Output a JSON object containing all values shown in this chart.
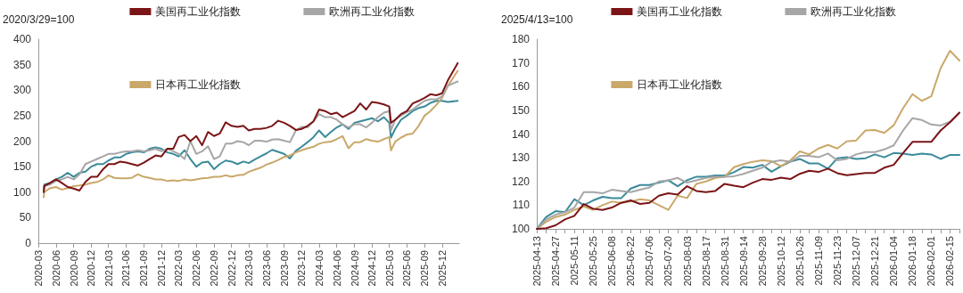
{
  "chart_data": [
    {
      "type": "line",
      "ylabel": "2020/3/29=100",
      "legend": "top",
      "marker": "none",
      "line_style": "solid",
      "grid": false,
      "x": [
        "2020-03-29",
        "2020-04-01",
        "2020-05-01",
        "2020-06-01",
        "2020-07-01",
        "2020-08-01",
        "2020-09-01",
        "2020-10-01",
        "2020-11-01",
        "2020-12-01",
        "2021-01-01",
        "2021-02-01",
        "2021-03-01",
        "2021-04-01",
        "2021-05-01",
        "2021-06-01",
        "2021-07-01",
        "2021-08-01",
        "2021-09-01",
        "2021-10-01",
        "2021-11-01",
        "2021-12-01",
        "2022-01-01",
        "2022-02-01",
        "2022-03-01",
        "2022-04-01",
        "2022-05-01",
        "2022-06-01",
        "2022-07-01",
        "2022-08-01",
        "2022-09-01",
        "2022-10-01",
        "2022-11-01",
        "2022-12-01",
        "2023-01-01",
        "2023-02-01",
        "2023-03-01",
        "2023-04-01",
        "2023-05-01",
        "2023-06-01",
        "2023-07-01",
        "2023-08-01",
        "2023-09-01",
        "2023-10-01",
        "2023-11-01",
        "2023-12-01",
        "2024-01-01",
        "2024-02-01",
        "2024-03-01",
        "2024-04-01",
        "2024-05-01",
        "2024-06-01",
        "2024-07-01",
        "2024-08-01",
        "2024-09-01",
        "2024-10-01",
        "2024-11-01",
        "2024-12-01",
        "2025-01-01",
        "2025-02-01",
        "2025-03-01",
        "2025-03-10",
        "2025-04-01",
        "2025-05-01",
        "2025-06-01",
        "2025-07-01",
        "2025-08-01",
        "2025-09-01",
        "2025-10-01",
        "2025-11-01",
        "2025-12-01",
        "2026-01-01",
        "2026-02-20"
      ],
      "xlim": [
        "2020-03-01",
        "2026-02-28"
      ],
      "xticks": [
        "2020-03",
        "2020-06",
        "2020-09",
        "2020-12",
        "2021-03",
        "2021-06",
        "2021-09",
        "2021-12",
        "2022-03",
        "2022-06",
        "2022-09",
        "2022-12",
        "2023-03",
        "2023-06",
        "2023-09",
        "2023-12",
        "2024-03",
        "2024-06",
        "2024-09",
        "2024-12",
        "2025-03",
        "2025-06",
        "2025-09",
        "2025-12"
      ],
      "ylim": [
        0,
        400
      ],
      "yticks": [
        0,
        50,
        100,
        150,
        200,
        250,
        300,
        350,
        400
      ],
      "series": [
        {
          "name": "美国再工业化指数",
          "color": "#7b1416",
          "values": [
            100,
            112,
            118,
            125,
            118,
            110,
            107,
            103,
            120,
            130,
            130,
            145,
            155,
            155,
            160,
            158,
            155,
            152,
            158,
            165,
            172,
            170,
            185,
            185,
            208,
            212,
            200,
            210,
            192,
            218,
            210,
            215,
            237,
            230,
            228,
            230,
            221,
            224,
            224,
            226,
            230,
            240,
            236,
            230,
            222,
            224,
            230,
            239,
            262,
            259,
            253,
            256,
            247,
            253,
            259,
            274,
            262,
            277,
            275,
            272,
            268,
            236,
            242,
            253,
            259,
            274,
            279,
            285,
            292,
            290,
            294,
            320,
            353
          ]
        },
        {
          "name": "欧洲再工业化指数",
          "color": "#a6a6a6",
          "values": [
            100,
            112,
            115,
            122,
            125,
            130,
            125,
            135,
            155,
            160,
            165,
            170,
            175,
            175,
            178,
            180,
            180,
            182,
            180,
            182,
            185,
            180,
            185,
            180,
            175,
            165,
            200,
            175,
            180,
            190,
            165,
            170,
            195,
            195,
            200,
            198,
            192,
            201,
            201,
            199,
            203,
            204,
            201,
            198,
            221,
            228,
            227,
            239,
            253,
            247,
            247,
            242,
            233,
            227,
            233,
            233,
            227,
            236,
            247,
            256,
            259,
            221,
            242,
            250,
            257,
            262,
            271,
            279,
            282,
            282,
            288,
            309,
            317
          ]
        },
        {
          "name": "日本再工业化指数",
          "color": "#c9a86a",
          "values": [
            90,
            100,
            108,
            110,
            105,
            108,
            112,
            113,
            115,
            118,
            120,
            125,
            133,
            128,
            127,
            127,
            128,
            135,
            130,
            128,
            125,
            125,
            122,
            123,
            122,
            125,
            123,
            125,
            127,
            128,
            130,
            130,
            133,
            130,
            133,
            134,
            140,
            144,
            148,
            154,
            158,
            163,
            169,
            172,
            178,
            182,
            186,
            189,
            195,
            198,
            199,
            204,
            210,
            186,
            198,
            198,
            204,
            201,
            199,
            204,
            208,
            182,
            199,
            207,
            213,
            215,
            230,
            250,
            259,
            271,
            285,
            309,
            338
          ]
        },
        {
          "color": "#3b8a9a",
          "values": [
            100,
            115,
            118,
            125,
            130,
            138,
            130,
            138,
            140,
            150,
            155,
            155,
            162,
            168,
            168,
            175,
            178,
            180,
            178,
            185,
            188,
            185,
            178,
            175,
            170,
            182,
            165,
            150,
            158,
            160,
            145,
            155,
            162,
            160,
            155,
            160,
            157,
            164,
            170,
            176,
            183,
            179,
            175,
            166,
            181,
            189,
            198,
            208,
            221,
            208,
            218,
            227,
            233,
            224,
            236,
            239,
            242,
            245,
            239,
            247,
            236,
            207,
            224,
            242,
            250,
            259,
            265,
            268,
            275,
            279,
            279,
            277,
            279
          ]
        }
      ]
    },
    {
      "type": "line",
      "ylabel": "2025/4/13=100",
      "legend": "top",
      "marker": "none",
      "line_style": "solid",
      "grid": false,
      "categories": [
        "2025-04-13",
        null,
        "2025-04-27",
        null,
        "2025-05-11",
        null,
        "2025-05-25",
        null,
        "2025-06-08",
        null,
        "2025-06-22",
        null,
        "2025-07-06",
        null,
        "2025-07-20",
        null,
        "2025-08-03",
        null,
        "2025-08-17",
        null,
        "2025-08-31",
        null,
        "2025-09-14",
        null,
        "2025-09-28",
        null,
        "2025-10-12",
        null,
        "2025-10-26",
        null,
        "2025-11-09",
        null,
        "2025-11-23",
        null,
        "2025-12-07",
        null,
        "2025-12-21",
        null,
        "2026-01-04",
        null,
        "2026-01-18",
        null,
        "2026-02-01",
        null,
        "2026-02-15",
        null
      ],
      "ylim": [
        100,
        180
      ],
      "yticks": [
        100,
        110,
        120,
        130,
        140,
        150,
        160,
        170,
        180
      ],
      "series": [
        {
          "name": "美国再工业化指数",
          "color": "#7b1416",
          "values": [
            100,
            100.3,
            101.5,
            104,
            105.5,
            110.5,
            108.5,
            108,
            109,
            111,
            112,
            110.5,
            111,
            114,
            115,
            114.5,
            118,
            116,
            115.5,
            116,
            119,
            118.2,
            117.6,
            119.5,
            121,
            120.7,
            121.6,
            121,
            123.2,
            124.5,
            124,
            125.4,
            123.5,
            122.6,
            123.1,
            123.6,
            123.6,
            125.8,
            127,
            132,
            136.7,
            136.7,
            136.7,
            141.5,
            145,
            149
          ]
        },
        {
          "name": "欧洲再工业化指数",
          "color": "#a6a6a6",
          "values": [
            100,
            104,
            106,
            107,
            109,
            115.5,
            115.5,
            115,
            116.5,
            116,
            115.5,
            116.5,
            117.5,
            120,
            120.5,
            121.5,
            119.5,
            120.5,
            121.5,
            122,
            122,
            122.2,
            123.2,
            124.5,
            125.8,
            128.3,
            128.9,
            128.3,
            130.8,
            130.8,
            130.2,
            131.8,
            128.9,
            129.5,
            131.4,
            132.4,
            132.4,
            133.5,
            135.2,
            141.5,
            146.7,
            145.9,
            144,
            143.6,
            145.2,
            149
          ]
        },
        {
          "name": "日本再工业化指数",
          "color": "#c9a86a",
          "values": [
            100,
            103,
            105,
            106,
            108,
            109.5,
            108,
            110,
            111.5,
            111,
            111.5,
            112.5,
            112,
            110,
            108,
            114,
            113,
            119,
            120,
            121.5,
            122,
            126,
            127.3,
            128.3,
            128.9,
            128.5,
            126.4,
            128.9,
            132.7,
            131.4,
            133.9,
            135.4,
            133.9,
            136.9,
            137.3,
            141.5,
            141.7,
            140.5,
            143.7,
            150.9,
            156.8,
            154,
            155.9,
            167.8,
            175.1,
            171
          ]
        },
        {
          "color": "#3b8a9a",
          "values": [
            100,
            105,
            107.5,
            107,
            112.5,
            110,
            112,
            113.5,
            113,
            113,
            117,
            118.5,
            118.5,
            119.5,
            120.5,
            118,
            120.5,
            122,
            122,
            122.5,
            122.5,
            123.9,
            126.1,
            125.8,
            127,
            124.1,
            126.4,
            128.3,
            129.5,
            127.6,
            127.6,
            125.4,
            129.8,
            130.2,
            129.5,
            129.8,
            131.4,
            130.2,
            132,
            131.7,
            131.2,
            131.7,
            131.4,
            129.5,
            131.2,
            131.2
          ]
        }
      ]
    }
  ]
}
